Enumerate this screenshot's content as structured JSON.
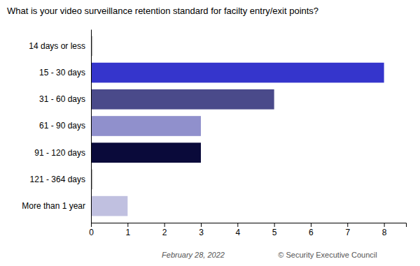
{
  "chart_data": {
    "type": "bar",
    "orientation": "horizontal",
    "title": "What is your video surveillance retention standard for facilty entry/exit points?",
    "categories": [
      "14 days or less",
      "15 - 30 days",
      "31 - 60 days",
      "61 - 90 days",
      "91 - 120 days",
      "121 - 364 days",
      "More than 1 year"
    ],
    "values": [
      0.05,
      8,
      5,
      3,
      3,
      0.05,
      1
    ],
    "colors": [
      "#c8c8c8",
      "#3535cc",
      "#4a4a8a",
      "#9090cc",
      "#0a0a3a",
      "#c8c8c8",
      "#c0c0e0"
    ],
    "xlim": [
      0,
      8.6
    ],
    "xticks": [
      0,
      1,
      2,
      3,
      4,
      5,
      6,
      7,
      8
    ],
    "grid": false,
    "annotations": [
      "February 28, 2022",
      "© Security Executive Council"
    ]
  }
}
